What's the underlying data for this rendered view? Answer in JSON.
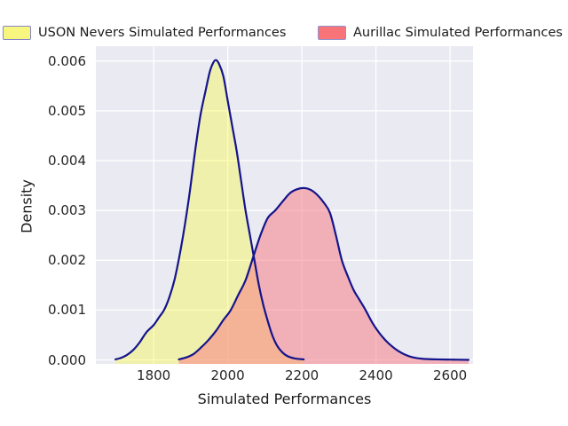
{
  "colors": {
    "figure_bg": "#ffffff",
    "axes_bg": "#eaeaf2",
    "grid": "#ffffff",
    "curve_line": "#14148c",
    "tick_text": "#262626",
    "label_text": "#1a1a1a"
  },
  "chart_data": {
    "type": "area",
    "subtype": "kde-density",
    "title": "",
    "xlabel": "Simulated Performances",
    "ylabel": "Density",
    "xlim": [
      1644,
      2662
    ],
    "ylim": [
      -8e-05,
      0.0063
    ],
    "grid": true,
    "legend_position": "top",
    "x_ticks": {
      "values": [
        1800,
        2000,
        2200,
        2400,
        2600
      ],
      "labels": [
        "1800",
        "2000",
        "2200",
        "2400",
        "2600"
      ]
    },
    "y_ticks": {
      "values": [
        0,
        0.001,
        0.002,
        0.003,
        0.004,
        0.005,
        0.006
      ],
      "labels": [
        "0.000",
        "0.001",
        "0.002",
        "0.003",
        "0.004",
        "0.005",
        "0.006"
      ]
    },
    "series": [
      {
        "name": "USON Nevers Simulated Performances",
        "peak": {
          "x": 1968,
          "density": 0.00602
        },
        "stroke": "#14148c",
        "fill": "rgba(250,250,60,0.38)",
        "swatch_fill": "#f7f77f",
        "swatch_edge": "#8585c8",
        "points": [
          [
            1697,
            1e-05
          ],
          [
            1712,
            4e-05
          ],
          [
            1728,
            0.0001
          ],
          [
            1745,
            0.0002
          ],
          [
            1762,
            0.00035
          ],
          [
            1780,
            0.00055
          ],
          [
            1800,
            0.0007
          ],
          [
            1814,
            0.00085
          ],
          [
            1828,
            0.001
          ],
          [
            1842,
            0.00125
          ],
          [
            1856,
            0.0016
          ],
          [
            1870,
            0.0021
          ],
          [
            1884,
            0.0027
          ],
          [
            1898,
            0.0034
          ],
          [
            1912,
            0.0042
          ],
          [
            1926,
            0.0049
          ],
          [
            1940,
            0.0054
          ],
          [
            1952,
            0.0058
          ],
          [
            1961,
            0.00597
          ],
          [
            1968,
            0.00602
          ],
          [
            1976,
            0.00595
          ],
          [
            1988,
            0.0057
          ],
          [
            2000,
            0.0052
          ],
          [
            2012,
            0.0047
          ],
          [
            2024,
            0.0042
          ],
          [
            2036,
            0.0036
          ],
          [
            2048,
            0.003
          ],
          [
            2060,
            0.0025
          ],
          [
            2072,
            0.002
          ],
          [
            2084,
            0.0015
          ],
          [
            2096,
            0.0011
          ],
          [
            2108,
            0.00078
          ],
          [
            2120,
            0.0005
          ],
          [
            2132,
            0.0003
          ],
          [
            2145,
            0.00017
          ],
          [
            2160,
            8e-05
          ],
          [
            2180,
            3e-05
          ],
          [
            2205,
            1e-05
          ]
        ]
      },
      {
        "name": "Aurillac Simulated Performances",
        "peak": {
          "x": 2208,
          "density": 0.00345
        },
        "stroke": "#14148c",
        "fill": "rgba(247,120,130,0.52)",
        "swatch_fill": "#f87478",
        "swatch_edge": "#9292cc",
        "points": [
          [
            1868,
            1e-05
          ],
          [
            1888,
            5e-05
          ],
          [
            1908,
            0.00012
          ],
          [
            1928,
            0.00025
          ],
          [
            1948,
            0.0004
          ],
          [
            1968,
            0.00058
          ],
          [
            1988,
            0.0008
          ],
          [
            2008,
            0.001
          ],
          [
            2028,
            0.0013
          ],
          [
            2048,
            0.0016
          ],
          [
            2068,
            0.00205
          ],
          [
            2088,
            0.0025
          ],
          [
            2108,
            0.00285
          ],
          [
            2128,
            0.003
          ],
          [
            2148,
            0.00318
          ],
          [
            2168,
            0.00335
          ],
          [
            2188,
            0.00343
          ],
          [
            2208,
            0.00345
          ],
          [
            2225,
            0.00341
          ],
          [
            2242,
            0.00331
          ],
          [
            2260,
            0.00315
          ],
          [
            2276,
            0.00295
          ],
          [
            2292,
            0.0025
          ],
          [
            2308,
            0.002
          ],
          [
            2324,
            0.00168
          ],
          [
            2340,
            0.0014
          ],
          [
            2356,
            0.0012
          ],
          [
            2372,
            0.001
          ],
          [
            2390,
            0.00075
          ],
          [
            2408,
            0.00055
          ],
          [
            2425,
            0.0004
          ],
          [
            2442,
            0.00028
          ],
          [
            2460,
            0.00018
          ],
          [
            2480,
            0.0001
          ],
          [
            2500,
            5e-05
          ],
          [
            2528,
            2e-05
          ],
          [
            2565,
            1e-05
          ],
          [
            2610,
            5e-06
          ],
          [
            2650,
            0.0
          ]
        ]
      }
    ]
  }
}
